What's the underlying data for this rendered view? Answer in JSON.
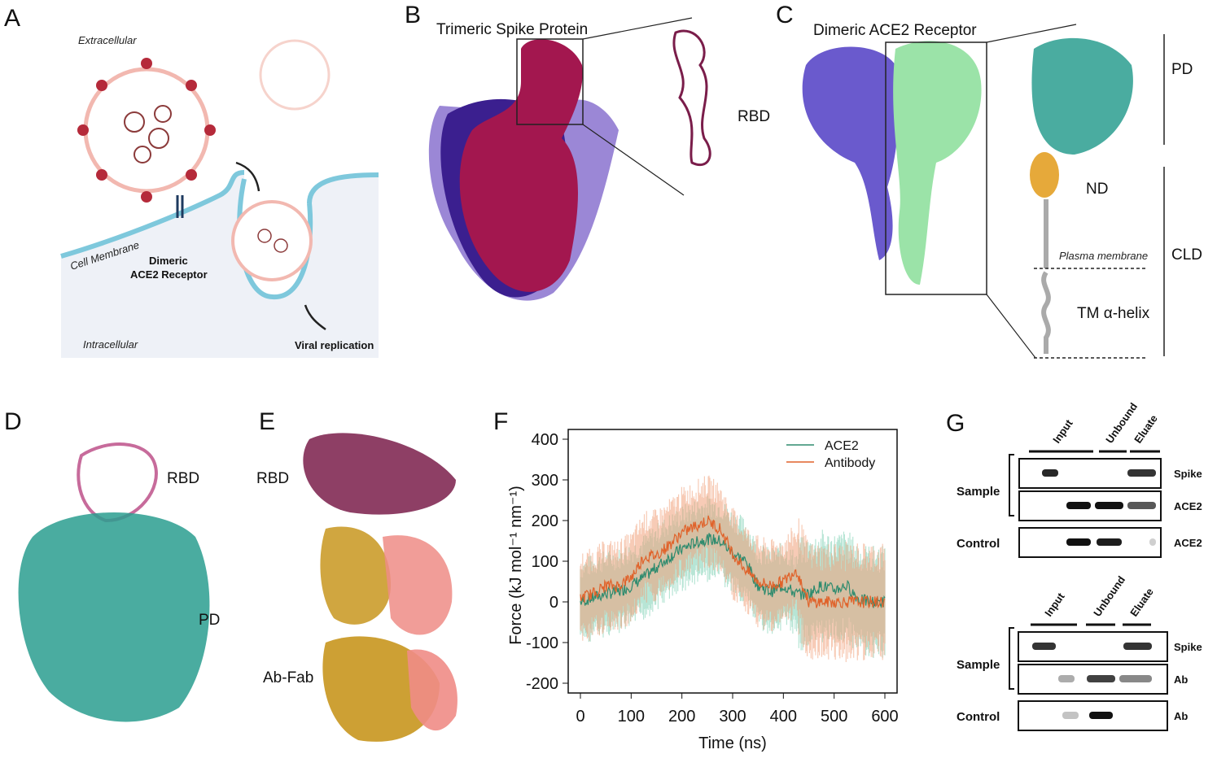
{
  "panels": {
    "A": {
      "letter": "A",
      "extracellular": "Extracellular",
      "intracellular": "Intracellular",
      "cell_membrane": "Cell Membrane",
      "receptor_line1": "Dimeric",
      "receptor_line2": "ACE2 Receptor",
      "replication": "Viral replication"
    },
    "B": {
      "letter": "B",
      "title": "Trimeric Spike Protein",
      "rbd": "RBD"
    },
    "C": {
      "letter": "C",
      "title": "Dimeric ACE2 Receptor",
      "pd": "PD",
      "nd": "ND",
      "cld": "CLD",
      "plasma_membrane": "Plasma membrane",
      "tm_helix": "TM α-helix"
    },
    "D": {
      "letter": "D",
      "rbd": "RBD",
      "pd": "PD"
    },
    "E": {
      "letter": "E",
      "rbd": "RBD",
      "abfab": "Ab-Fab"
    },
    "F": {
      "letter": "F"
    },
    "G": {
      "letter": "G",
      "blot1": {
        "lanes": [
          "Input",
          "Unbound",
          "Eluate"
        ],
        "rows": [
          {
            "group": "Sample",
            "label": "Spike"
          },
          {
            "group": "Sample",
            "label": "ACE2"
          },
          {
            "group": "Control",
            "label": "ACE2"
          }
        ]
      },
      "blot2": {
        "lanes": [
          "Input",
          "Unbound",
          "Eluate"
        ],
        "rows": [
          {
            "group": "Sample",
            "label": "Spike"
          },
          {
            "group": "Sample",
            "label": "Ab"
          },
          {
            "group": "Control",
            "label": "Ab"
          }
        ]
      },
      "sample": "Sample",
      "control": "Control"
    }
  },
  "colors": {
    "spike": "#a3174f",
    "ace2": "#2a9d8f",
    "antibody_series": "#e0622a",
    "ace2_series": "#2e8b6e",
    "fab": "#c8961e",
    "ace2_surface_a": "#6a5acd",
    "ace2_surface_b": "#9be3a8"
  },
  "chart_data": {
    "type": "line",
    "xlabel": "Time (ns)",
    "ylabel": "Force (kJ mol⁻¹ nm⁻¹)",
    "xlim": [
      0,
      600
    ],
    "ylim": [
      -200,
      400
    ],
    "xticks": [
      0,
      100,
      200,
      300,
      400,
      500,
      600
    ],
    "yticks": [
      400,
      300,
      200,
      100,
      0,
      -100,
      -200
    ],
    "legend": "top-right",
    "x": [
      0,
      25,
      50,
      75,
      100,
      125,
      150,
      175,
      200,
      225,
      250,
      275,
      300,
      325,
      350,
      375,
      400,
      425,
      450,
      475,
      500,
      525,
      550,
      575,
      600
    ],
    "series": [
      {
        "name": "ACE2",
        "color": "#2e8b6e",
        "values": [
          0,
          10,
          20,
          25,
          40,
          60,
          85,
          110,
          130,
          145,
          155,
          150,
          120,
          100,
          40,
          25,
          40,
          20,
          20,
          40,
          30,
          40,
          5,
          0,
          0
        ],
        "spread": 90
      },
      {
        "name": "Antibody",
        "color": "#e0622a",
        "values": [
          10,
          20,
          40,
          40,
          60,
          110,
          115,
          140,
          170,
          185,
          200,
          180,
          120,
          80,
          50,
          40,
          50,
          80,
          0,
          0,
          0,
          0,
          0,
          0,
          0
        ],
        "spread": 95
      }
    ]
  }
}
